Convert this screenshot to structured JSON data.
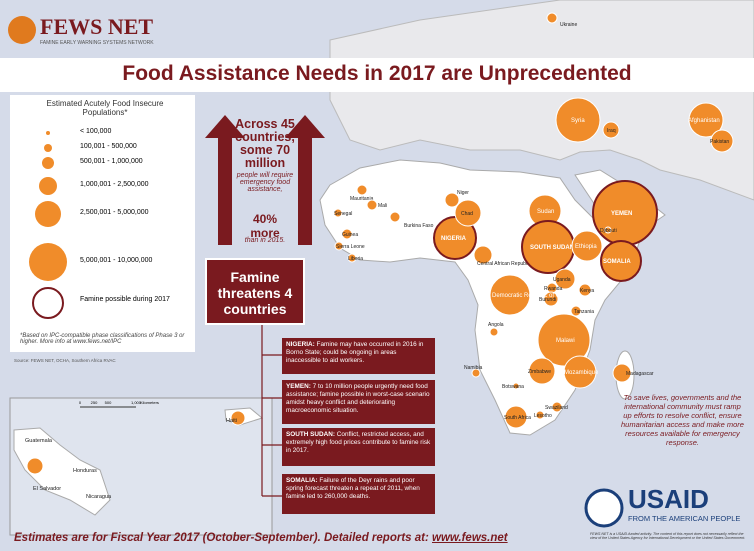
{
  "header": {
    "logo": "FEWS NET",
    "network": "FAMINE EARLY WARNING SYSTEMS NETWORK"
  },
  "title": "Food Assistance Needs in 2017 are Unprecedented",
  "legend": {
    "title": "Estimated Acutely Food Insecure Populations*",
    "items": [
      "< 100,000",
      "100,001 - 500,000",
      "500,001 - 1,000,000",
      "1,000,001 - 2,500,000",
      "2,500,001 - 5,000,000",
      "5,000,001 - 10,000,000"
    ],
    "famine": "Famine possible during 2017",
    "footnote": "*Based on IPC-compatible phase classifications of Phase 3 or higher. More info at www.fews.net/IPC",
    "source": "Source: FEWS NET, OCHA, Southern Africa RVAC"
  },
  "stat": {
    "headline": "Across 45 countries, some 70 million",
    "sub": "people will require emergency food assistance,",
    "highlight": "40% more",
    "tail": "than in 2015."
  },
  "famine": {
    "title": "Famine threatens 4 countries",
    "boxes": [
      {
        "lead": "NIGERIA:",
        "text": "Famine may have occurred in 2016 in Borno State; could be ongoing in areas inaccessible to aid workers."
      },
      {
        "lead": "YEMEN:",
        "text": "7 to 10 million people urgently need food assistance; famine possible in worst-case scenario amidst heavy conflict and deteriorating macroeconomic situation."
      },
      {
        "lead": "SOUTH SUDAN:",
        "text": "Conflict, restricted access, and extremely high food prices contribute to famine risk in 2017."
      },
      {
        "lead": "SOMALIA:",
        "text": "Failure of the Deyr rains and poor spring forecast threaten a repeat of 2011, when famine led to 260,000 deaths."
      }
    ]
  },
  "map": {
    "countries": [
      "Ukraine",
      "Syria",
      "Iraq",
      "Afghanistan",
      "Pakistan",
      "Mauritania",
      "Mali",
      "Niger",
      "Senegal",
      "Burkina Faso",
      "Guinea",
      "Sierra Leone",
      "Liberia",
      "NIGERIA",
      "Chad",
      "Sudan",
      "Central African Republic",
      "SOUTH SUDAN",
      "Ethiopia",
      "YEMEN",
      "Djibouti",
      "SOMALIA",
      "Uganda",
      "Kenya",
      "Rwanda",
      "Burundi",
      "Democratic Republic of Congo",
      "Tanzania",
      "Angola",
      "Malawi",
      "Namibia",
      "Zimbabwe",
      "Mozambique",
      "Madagascar",
      "Botswana",
      "South Africa",
      "Lesotho",
      "Swaziland"
    ],
    "inset": {
      "countries": [
        "Haiti",
        "Guatemala",
        "Honduras",
        "El Salvador",
        "Nicaragua"
      ],
      "scale": [
        "0",
        "250",
        "500",
        "1,000"
      ],
      "unit": "Kilometers"
    }
  },
  "callout": "To save lives, governments and the international community must ramp up efforts to resolve conflict, ensure humanitarian access and make more resources available for emergency response.",
  "footer": {
    "text": "Estimates are for Fiscal Year 2017 (October-September). Detailed reports at: ",
    "link": "www.fews.net",
    "usaid": "USAID",
    "tagline": "FROM THE AMERICAN PEOPLE",
    "disclaimer": "FEWS NET is a USAID-funded activity. The content of this report does not necessarily reflect the view of the United States Agency for International Development or the United States Government."
  }
}
